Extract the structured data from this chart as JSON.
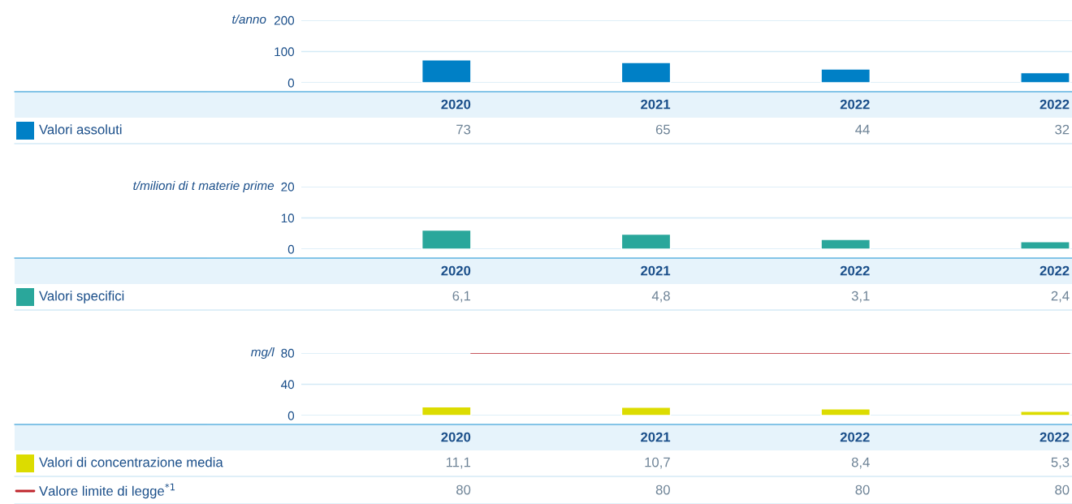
{
  "chart_data": [
    {
      "type": "bar",
      "ylabel": "t/anno",
      "categories": [
        "2020",
        "2021",
        "2022",
        "2022"
      ],
      "ylim": [
        0,
        200
      ],
      "yticks": [
        0,
        100,
        200
      ],
      "grid": "y",
      "legend": "bottom left",
      "tick_labels": "y",
      "series": [
        {
          "name": "Valori assoluti",
          "color": "#0080c6",
          "values": [
            73,
            65,
            44,
            32
          ],
          "value_labels": [
            "73",
            "65",
            "44",
            "32"
          ]
        }
      ]
    },
    {
      "type": "bar",
      "ylabel": "t/milioni di t materie prime",
      "categories": [
        "2020",
        "2021",
        "2022",
        "2022"
      ],
      "ylim": [
        0,
        20
      ],
      "yticks": [
        0,
        10,
        20
      ],
      "grid": "y",
      "legend": "bottom left",
      "tick_labels": "y",
      "series": [
        {
          "name": "Valori specifici",
          "color": "#2aa79b",
          "values": [
            6.1,
            4.8,
            3.1,
            2.4
          ],
          "value_labels": [
            "6,1",
            "4,8",
            "3,1",
            "2,4"
          ]
        }
      ]
    },
    {
      "type": "bar",
      "ylabel": "mg/l",
      "categories": [
        "2020",
        "2021",
        "2022",
        "2022"
      ],
      "ylim": [
        0,
        80
      ],
      "yticks": [
        0,
        40,
        80
      ],
      "grid": "y",
      "legend": "bottom left",
      "tick_labels": "y",
      "series": [
        {
          "name": "Valori di concentrazione media",
          "color": "#dcdc00",
          "values": [
            11.1,
            10.7,
            8.4,
            5.3
          ],
          "value_labels": [
            "11,1",
            "10,7",
            "8,4",
            "5,3"
          ]
        },
        {
          "type": "line",
          "name": "Valore limite di legge$^{*1}$",
          "color": "#c0262d",
          "values": [
            80,
            80,
            80,
            80
          ],
          "value_labels": [
            "80",
            "80",
            "80",
            "80"
          ],
          "line_style": "solid"
        }
      ]
    }
  ]
}
